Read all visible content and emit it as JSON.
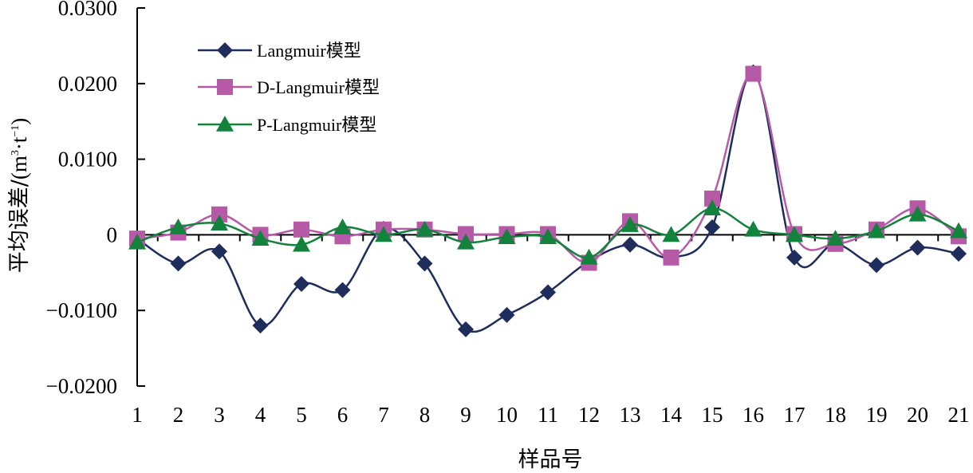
{
  "chart_data": {
    "type": "line",
    "xlabel": "样品号",
    "ylabel": {
      "text": "平均误差/",
      "unit_open": "(m",
      "unit_sup1": "3",
      "unit_mid": "·t",
      "unit_sup2": "−1",
      "unit_close": ")"
    },
    "ylim": [
      -0.02,
      0.03
    ],
    "yticks": [
      -0.02,
      -0.01,
      0,
      0.01,
      0.02,
      0.03
    ],
    "ytick_labels": [
      "−0.0200",
      "−0.0100",
      "0",
      "0.0100",
      "0.0200",
      "0.0300"
    ],
    "categories": [
      "1",
      "2",
      "3",
      "4",
      "5",
      "6",
      "7",
      "8",
      "9",
      "10",
      "11",
      "12",
      "13",
      "14",
      "15",
      "16",
      "17",
      "18",
      "19",
      "20",
      "21"
    ],
    "legend_position": "top-left",
    "grid": false,
    "series": [
      {
        "name": "Langmuir模型",
        "color": "#1f2d5c",
        "marker": "diamond",
        "values": [
          -0.0005,
          -0.0038,
          -0.0022,
          -0.012,
          -0.0065,
          -0.0073,
          0.0008,
          -0.0038,
          -0.0125,
          -0.0106,
          -0.0076,
          -0.0035,
          -0.0013,
          -0.003,
          0.001,
          0.0215,
          -0.003,
          -0.0012,
          -0.004,
          -0.0017,
          -0.0025
        ]
      },
      {
        "name": "D-Langmuir模型",
        "color": "#b65aa8",
        "marker": "square",
        "values": [
          -0.0005,
          0.0003,
          0.0027,
          0.0,
          0.0007,
          -0.0002,
          0.0007,
          0.0007,
          0.0001,
          0.0001,
          0.0001,
          -0.0037,
          0.0018,
          -0.003,
          0.0048,
          0.0213,
          0.0001,
          -0.0012,
          0.0007,
          0.0035,
          -0.0002
        ]
      },
      {
        "name": "P-Langmuir模型",
        "color": "#13823c",
        "marker": "triangle",
        "values": [
          -0.001,
          0.001,
          0.0015,
          -0.0005,
          -0.0013,
          0.001,
          0.0,
          0.0007,
          -0.001,
          -0.0003,
          -0.0003,
          -0.003,
          0.0013,
          0.0,
          0.0035,
          0.0007,
          0.0,
          -0.0005,
          0.0005,
          0.0027,
          0.0005
        ]
      }
    ]
  }
}
